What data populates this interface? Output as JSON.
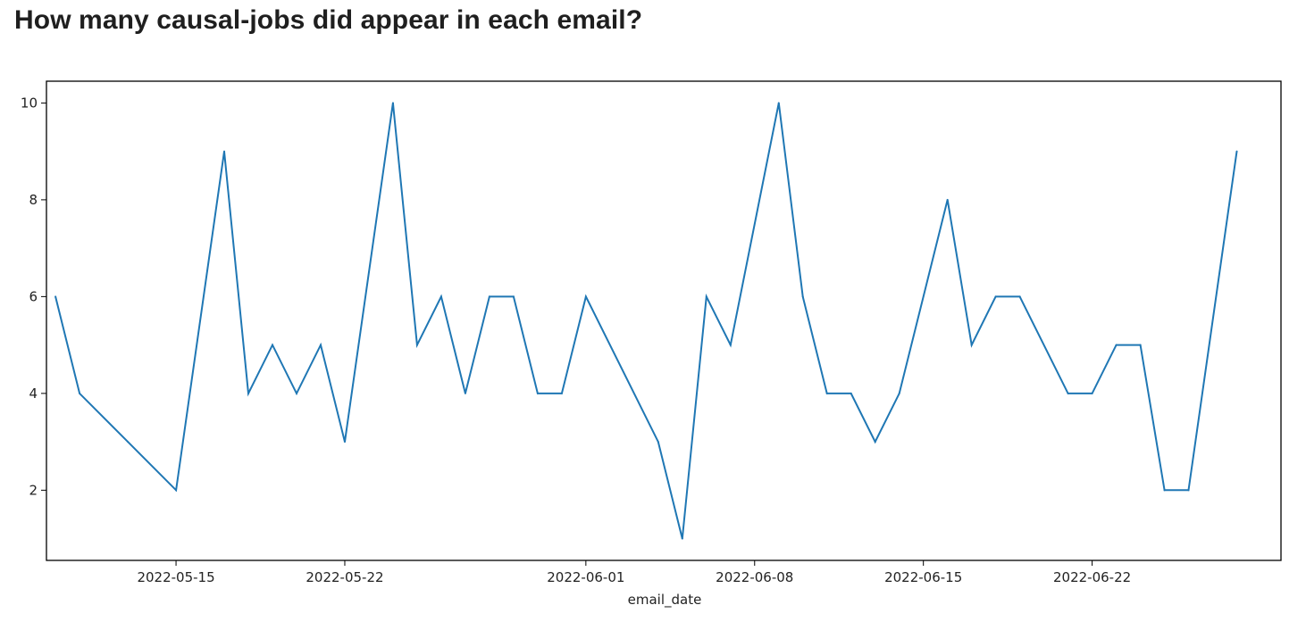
{
  "page": {
    "heading": "How many causal-jobs did appear in each email?"
  },
  "colors": {
    "line": "#1f77b4",
    "axes": "#000000",
    "text": "#222222"
  },
  "chart_data": {
    "type": "line",
    "title": "",
    "xlabel": "email_date",
    "ylabel": "",
    "grid": false,
    "legend": "none",
    "x_type": "date",
    "xlim": [
      "2022-05-09T15:00",
      "2022-06-29T20:00"
    ],
    "ylim": [
      0.55,
      10.45
    ],
    "xticks": [
      {
        "value": "2022-05-15",
        "label": "2022-05-15"
      },
      {
        "value": "2022-05-22",
        "label": "2022-05-22"
      },
      {
        "value": "2022-06-01",
        "label": "2022-06-01"
      },
      {
        "value": "2022-06-08",
        "label": "2022-06-08"
      },
      {
        "value": "2022-06-15",
        "label": "2022-06-15"
      },
      {
        "value": "2022-06-22",
        "label": "2022-06-22"
      }
    ],
    "yticks": [
      {
        "value": 2,
        "label": "2"
      },
      {
        "value": 4,
        "label": "4"
      },
      {
        "value": 6,
        "label": "6"
      },
      {
        "value": 8,
        "label": "8"
      },
      {
        "value": 10,
        "label": "10"
      }
    ],
    "series": [
      {
        "x": [
          "2022-05-10",
          "2022-05-11",
          "2022-05-13",
          "2022-05-15",
          "2022-05-17",
          "2022-05-18",
          "2022-05-19",
          "2022-05-20",
          "2022-05-21",
          "2022-05-22",
          "2022-05-24",
          "2022-05-25",
          "2022-05-26",
          "2022-05-27",
          "2022-05-28",
          "2022-05-29",
          "2022-05-30",
          "2022-05-31",
          "2022-06-01",
          "2022-06-04",
          "2022-06-05",
          "2022-06-06",
          "2022-06-07",
          "2022-06-09",
          "2022-06-10",
          "2022-06-11",
          "2022-06-12",
          "2022-06-13",
          "2022-06-14",
          "2022-06-16",
          "2022-06-17",
          "2022-06-18",
          "2022-06-19",
          "2022-06-21",
          "2022-06-22",
          "2022-06-23",
          "2022-06-24",
          "2022-06-25",
          "2022-06-26",
          "2022-06-28"
        ],
        "y": [
          6,
          4,
          3,
          2,
          9,
          4,
          5,
          4,
          5,
          3,
          10,
          5,
          6,
          4,
          6,
          6,
          4,
          4,
          6,
          3,
          1,
          6,
          5,
          10,
          6,
          4,
          4,
          3,
          4,
          8,
          5,
          6,
          6,
          4,
          4,
          5,
          5,
          2,
          2,
          9
        ]
      }
    ]
  }
}
